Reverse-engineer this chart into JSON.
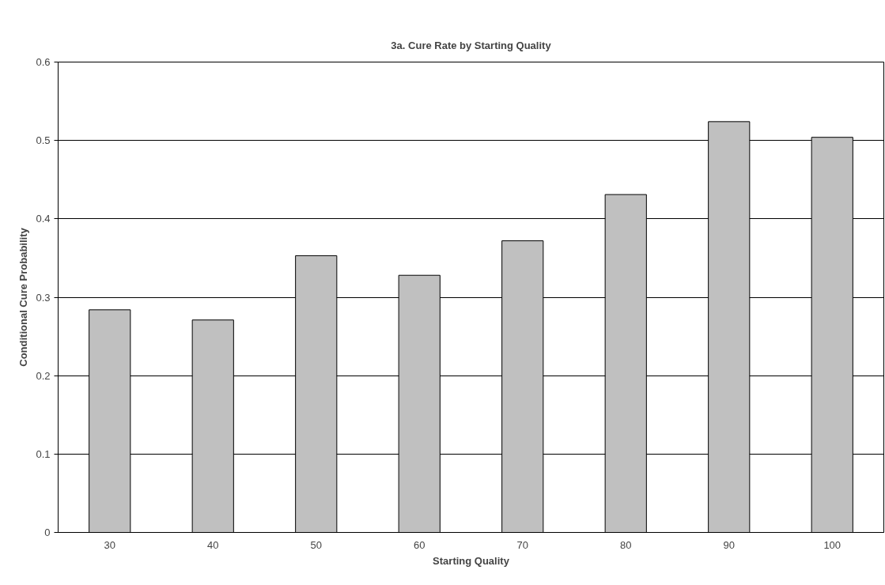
{
  "chart_data": {
    "type": "bar",
    "title": "3a. Cure Rate by Starting Quality",
    "xlabel": "Starting Quality",
    "ylabel": "Conditional Cure Probability",
    "categories": [
      "30",
      "40",
      "50",
      "60",
      "70",
      "80",
      "90",
      "100"
    ],
    "values": [
      0.284,
      0.271,
      0.353,
      0.328,
      0.372,
      0.431,
      0.524,
      0.504
    ],
    "color": "#c0c0c0",
    "ylim": [
      0,
      0.6
    ],
    "yticks": [
      0,
      0.1,
      0.2,
      0.3,
      0.4,
      0.5,
      0.6
    ],
    "grid": "y"
  }
}
